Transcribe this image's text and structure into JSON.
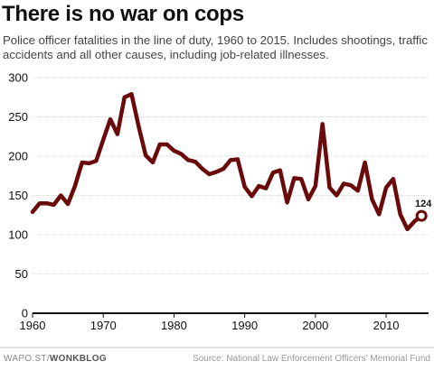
{
  "title": "There is no war on cops",
  "subtitle": "Police officer fatalities in the line of duty, 1960 to 2015. Includes shootings, traffic accidents and all other causes, including job-related illnesses.",
  "footer": {
    "brand_prefix": "WAPO.ST/",
    "brand_name": "WONKBLOG",
    "source": "Source: National Law Enforcement Officers' Memorial Fund"
  },
  "colors": {
    "line": "#6b0a0a",
    "grid": "#d8d8d8",
    "axis": "#111111"
  },
  "chart_data": {
    "type": "line",
    "title": "There is no war on cops",
    "xlabel": "",
    "ylabel": "",
    "xlim": [
      1960,
      2016
    ],
    "ylim": [
      0,
      300
    ],
    "yticks": [
      0,
      50,
      100,
      150,
      200,
      250,
      300
    ],
    "xticks": [
      1960,
      1970,
      1980,
      1990,
      2000,
      2010
    ],
    "grid": true,
    "end_label": "124",
    "x": [
      1960,
      1961,
      1962,
      1963,
      1964,
      1965,
      1966,
      1967,
      1968,
      1969,
      1970,
      1971,
      1972,
      1973,
      1974,
      1975,
      1976,
      1977,
      1978,
      1979,
      1980,
      1981,
      1982,
      1983,
      1984,
      1985,
      1986,
      1987,
      1988,
      1989,
      1990,
      1991,
      1992,
      1993,
      1994,
      1995,
      1996,
      1997,
      1998,
      1999,
      2000,
      2001,
      2002,
      2003,
      2004,
      2005,
      2006,
      2007,
      2008,
      2009,
      2010,
      2011,
      2012,
      2013,
      2014,
      2015
    ],
    "y": [
      129,
      140,
      140,
      138,
      150,
      139,
      162,
      192,
      191,
      194,
      221,
      247,
      228,
      275,
      279,
      238,
      201,
      192,
      215,
      215,
      207,
      203,
      195,
      193,
      184,
      177,
      180,
      184,
      195,
      196,
      161,
      149,
      162,
      159,
      179,
      182,
      141,
      172,
      171,
      145,
      162,
      241,
      160,
      150,
      165,
      163,
      156,
      192,
      145,
      126,
      160,
      171,
      126,
      107,
      117,
      124
    ]
  }
}
